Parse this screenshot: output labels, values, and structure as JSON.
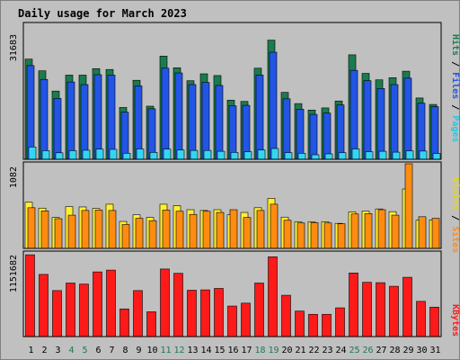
{
  "title": "Daily usage for March 2023",
  "colors": {
    "background": "#C0C0C0",
    "title": "#0000B0",
    "hits": "#1B7B4E",
    "files": "#2255E6",
    "pages": "#33D6F2",
    "visits": "#FFF030",
    "sites": "#FF8C10",
    "kbytes": "#FF1A1A",
    "weekend_label": "#1B7B4E",
    "weekday_label": "#000000"
  },
  "legend": {
    "hits": "Hits",
    "files": "Files",
    "pages": "Pages",
    "visits": "Visits",
    "sites": "Sites",
    "kbytes": "KBytes",
    "separator": " / "
  },
  "chart_data": [
    {
      "type": "bar",
      "panel": "hits-files-pages",
      "ymax_label": "31683",
      "ylim": [
        0,
        31683
      ],
      "categories": [
        "1",
        "2",
        "3",
        "4",
        "5",
        "6",
        "7",
        "8",
        "9",
        "10",
        "11",
        "12",
        "13",
        "14",
        "15",
        "16",
        "17",
        "18",
        "19",
        "20",
        "21",
        "22",
        "23",
        "24",
        "25",
        "26",
        "27",
        "28",
        "29",
        "30",
        "31"
      ],
      "weekend_days": [
        "4",
        "5",
        "11",
        "12",
        "18",
        "19",
        "25",
        "26"
      ],
      "series": [
        {
          "name": "Hits",
          "values": [
            23200,
            20500,
            15800,
            19500,
            19500,
            21000,
            20800,
            12000,
            18300,
            12300,
            23900,
            21200,
            18200,
            19800,
            19400,
            13700,
            13400,
            21100,
            27600,
            15500,
            12900,
            11400,
            11900,
            13500,
            24200,
            19900,
            18400,
            18900,
            20400,
            14200,
            12700
          ]
        },
        {
          "name": "Files",
          "values": [
            21700,
            18500,
            14100,
            17900,
            17300,
            19600,
            19500,
            10900,
            17000,
            11700,
            21100,
            20000,
            17300,
            17800,
            17100,
            12400,
            12500,
            19500,
            24800,
            14000,
            11600,
            10400,
            10700,
            12600,
            20600,
            18200,
            16400,
            17300,
            18800,
            13000,
            12200
          ]
        },
        {
          "name": "Pages",
          "values": [
            2850,
            2000,
            1500,
            2000,
            2100,
            2350,
            2300,
            1400,
            2400,
            1600,
            2350,
            2150,
            2050,
            2050,
            1850,
            1600,
            1750,
            2150,
            2500,
            1550,
            1400,
            1050,
            1250,
            1550,
            2400,
            1750,
            1850,
            1650,
            1950,
            1900,
            1350
          ]
        }
      ]
    },
    {
      "type": "bar",
      "panel": "visits-sites",
      "ymax_label": "1082",
      "ylim": [
        0,
        1082
      ],
      "categories": [
        "1",
        "2",
        "3",
        "4",
        "5",
        "6",
        "7",
        "8",
        "9",
        "10",
        "11",
        "12",
        "13",
        "14",
        "15",
        "16",
        "17",
        "18",
        "19",
        "20",
        "21",
        "22",
        "23",
        "24",
        "25",
        "26",
        "27",
        "28",
        "29",
        "30",
        "31"
      ],
      "series": [
        {
          "name": "Visits",
          "values": [
            590,
            515,
            395,
            535,
            530,
            510,
            565,
            345,
            430,
            395,
            565,
            545,
            495,
            485,
            495,
            430,
            460,
            520,
            640,
            400,
            340,
            340,
            340,
            320,
            465,
            475,
            505,
            470,
            760,
            360,
            365
          ]
        },
        {
          "name": "Sites",
          "values": [
            520,
            480,
            380,
            425,
            485,
            490,
            485,
            305,
            385,
            355,
            490,
            475,
            435,
            475,
            460,
            495,
            395,
            485,
            565,
            360,
            325,
            330,
            325,
            315,
            440,
            445,
            495,
            425,
            1082,
            405,
            385
          ]
        }
      ]
    },
    {
      "type": "bar",
      "panel": "kbytes",
      "ymax_label": "1151682",
      "ylim": [
        0,
        1151682
      ],
      "categories": [
        "1",
        "2",
        "3",
        "4",
        "5",
        "6",
        "7",
        "8",
        "9",
        "10",
        "11",
        "12",
        "13",
        "14",
        "15",
        "16",
        "17",
        "18",
        "19",
        "20",
        "21",
        "22",
        "23",
        "24",
        "25",
        "26",
        "27",
        "28",
        "29",
        "30",
        "31"
      ],
      "series": [
        {
          "name": "KBytes",
          "values": [
            1138000,
            865000,
            640000,
            745000,
            730000,
            900000,
            925000,
            385000,
            640000,
            345000,
            940000,
            880000,
            645000,
            650000,
            670000,
            425000,
            465000,
            745000,
            1110000,
            575000,
            355000,
            310000,
            310000,
            400000,
            885000,
            755000,
            750000,
            700000,
            825000,
            490000,
            410000
          ]
        }
      ]
    }
  ]
}
